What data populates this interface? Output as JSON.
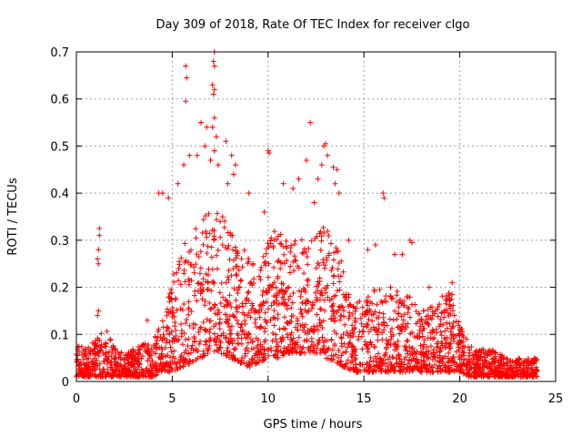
{
  "chart_data": {
    "type": "scatter",
    "title": "Day 309 of 2018, Rate Of TEC Index for receiver clgo",
    "xlabel": "GPS time / hours",
    "ylabel": "ROTI / TECUs",
    "xlim": [
      0,
      25
    ],
    "ylim": [
      0,
      0.7
    ],
    "xticks": [
      0,
      5,
      10,
      15,
      20,
      25
    ],
    "xtick_labels": [
      "0",
      "5",
      "10",
      "15",
      "20",
      "25"
    ],
    "yticks": [
      0,
      0.1,
      0.2,
      0.3,
      0.4,
      0.5,
      0.6,
      0.7
    ],
    "ytick_labels": [
      "0",
      "0.1",
      "0.2",
      "0.3",
      "0.4",
      "0.5",
      "0.6",
      "0.7"
    ],
    "grid": true,
    "marker": "+",
    "color": "#ff0000",
    "series": [
      {
        "name": "ROTI",
        "envelope": {
          "x": [
            0.0,
            0.5,
            1.0,
            1.5,
            2.0,
            2.5,
            3.0,
            3.5,
            4.0,
            4.5,
            5.0,
            5.5,
            6.0,
            6.5,
            7.0,
            7.5,
            8.0,
            8.5,
            9.0,
            9.5,
            10.0,
            10.5,
            11.0,
            11.5,
            12.0,
            12.5,
            13.0,
            13.5,
            14.0,
            14.5,
            15.0,
            15.5,
            16.0,
            16.5,
            17.0,
            17.5,
            18.0,
            18.5,
            19.0,
            19.5,
            20.0,
            20.5,
            21.0,
            21.5,
            22.0,
            22.5,
            23.0,
            23.5,
            24.0
          ],
          "low": [
            0.01,
            0.01,
            0.01,
            0.01,
            0.01,
            0.01,
            0.01,
            0.01,
            0.01,
            0.02,
            0.02,
            0.03,
            0.04,
            0.05,
            0.06,
            0.06,
            0.05,
            0.04,
            0.03,
            0.04,
            0.05,
            0.05,
            0.06,
            0.06,
            0.06,
            0.06,
            0.05,
            0.04,
            0.03,
            0.02,
            0.02,
            0.02,
            0.02,
            0.02,
            0.02,
            0.02,
            0.02,
            0.02,
            0.02,
            0.02,
            0.02,
            0.01,
            0.01,
            0.01,
            0.01,
            0.01,
            0.01,
            0.01,
            0.01
          ],
          "high": [
            0.08,
            0.07,
            0.09,
            0.12,
            0.07,
            0.06,
            0.07,
            0.08,
            0.09,
            0.13,
            0.22,
            0.28,
            0.33,
            0.34,
            0.38,
            0.36,
            0.32,
            0.3,
            0.26,
            0.24,
            0.3,
            0.33,
            0.3,
            0.31,
            0.3,
            0.32,
            0.33,
            0.34,
            0.24,
            0.18,
            0.19,
            0.2,
            0.2,
            0.2,
            0.19,
            0.18,
            0.15,
            0.16,
            0.18,
            0.2,
            0.12,
            0.08,
            0.07,
            0.07,
            0.06,
            0.05,
            0.05,
            0.05,
            0.05
          ]
        },
        "outliers": [
          {
            "x": 1.2,
            "y": 0.325
          },
          {
            "x": 1.2,
            "y": 0.31
          },
          {
            "x": 1.15,
            "y": 0.28
          },
          {
            "x": 1.1,
            "y": 0.26
          },
          {
            "x": 1.15,
            "y": 0.25
          },
          {
            "x": 1.15,
            "y": 0.15
          },
          {
            "x": 1.1,
            "y": 0.14
          },
          {
            "x": 3.7,
            "y": 0.13
          },
          {
            "x": 4.3,
            "y": 0.4
          },
          {
            "x": 4.5,
            "y": 0.4
          },
          {
            "x": 4.8,
            "y": 0.39
          },
          {
            "x": 5.3,
            "y": 0.42
          },
          {
            "x": 5.6,
            "y": 0.46
          },
          {
            "x": 5.7,
            "y": 0.67
          },
          {
            "x": 5.75,
            "y": 0.645
          },
          {
            "x": 5.7,
            "y": 0.595
          },
          {
            "x": 5.9,
            "y": 0.48
          },
          {
            "x": 6.3,
            "y": 0.48
          },
          {
            "x": 6.5,
            "y": 0.55
          },
          {
            "x": 6.8,
            "y": 0.54
          },
          {
            "x": 6.7,
            "y": 0.5
          },
          {
            "x": 7.2,
            "y": 0.7
          },
          {
            "x": 7.15,
            "y": 0.68
          },
          {
            "x": 7.2,
            "y": 0.67
          },
          {
            "x": 7.1,
            "y": 0.63
          },
          {
            "x": 7.2,
            "y": 0.62
          },
          {
            "x": 7.15,
            "y": 0.61
          },
          {
            "x": 7.2,
            "y": 0.56
          },
          {
            "x": 7.1,
            "y": 0.54
          },
          {
            "x": 7.3,
            "y": 0.52
          },
          {
            "x": 7.2,
            "y": 0.49
          },
          {
            "x": 7.0,
            "y": 0.47
          },
          {
            "x": 7.4,
            "y": 0.46
          },
          {
            "x": 7.8,
            "y": 0.51
          },
          {
            "x": 8.1,
            "y": 0.48
          },
          {
            "x": 8.3,
            "y": 0.46
          },
          {
            "x": 8.2,
            "y": 0.44
          },
          {
            "x": 7.9,
            "y": 0.42
          },
          {
            "x": 9.0,
            "y": 0.4
          },
          {
            "x": 9.8,
            "y": 0.36
          },
          {
            "x": 10.0,
            "y": 0.49
          },
          {
            "x": 10.05,
            "y": 0.485
          },
          {
            "x": 10.8,
            "y": 0.42
          },
          {
            "x": 11.3,
            "y": 0.41
          },
          {
            "x": 11.6,
            "y": 0.43
          },
          {
            "x": 12.0,
            "y": 0.47
          },
          {
            "x": 12.2,
            "y": 0.55
          },
          {
            "x": 12.4,
            "y": 0.38
          },
          {
            "x": 12.6,
            "y": 0.43
          },
          {
            "x": 12.8,
            "y": 0.46
          },
          {
            "x": 12.9,
            "y": 0.5
          },
          {
            "x": 13.0,
            "y": 0.505
          },
          {
            "x": 13.1,
            "y": 0.48
          },
          {
            "x": 13.4,
            "y": 0.455
          },
          {
            "x": 13.6,
            "y": 0.45
          },
          {
            "x": 13.5,
            "y": 0.42
          },
          {
            "x": 13.7,
            "y": 0.4
          },
          {
            "x": 14.2,
            "y": 0.3
          },
          {
            "x": 15.2,
            "y": 0.28
          },
          {
            "x": 15.6,
            "y": 0.29
          },
          {
            "x": 16.0,
            "y": 0.4
          },
          {
            "x": 16.05,
            "y": 0.39
          },
          {
            "x": 16.6,
            "y": 0.27
          },
          {
            "x": 17.0,
            "y": 0.27
          },
          {
            "x": 17.4,
            "y": 0.3
          },
          {
            "x": 17.5,
            "y": 0.295
          },
          {
            "x": 18.4,
            "y": 0.2
          },
          {
            "x": 19.6,
            "y": 0.21
          }
        ]
      }
    ]
  }
}
